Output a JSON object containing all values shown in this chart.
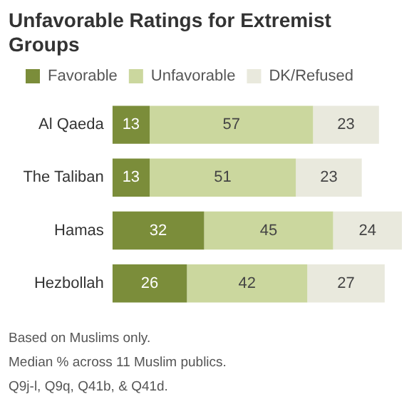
{
  "chart_data": {
    "type": "bar",
    "orientation": "horizontal",
    "stacked": true,
    "title": "Unfavorable Ratings for Extremist Groups",
    "categories": [
      "Al Qaeda",
      "The Taliban",
      "Hamas",
      "Hezbollah"
    ],
    "series": [
      {
        "name": "Favorable",
        "color": "#7b8d3a",
        "values": [
          13,
          13,
          32,
          26
        ]
      },
      {
        "name": "Unfavorable",
        "color": "#cbd79e",
        "values": [
          57,
          51,
          45,
          42
        ]
      },
      {
        "name": "DK/Refused",
        "color": "#e9e9dd",
        "values": [
          23,
          23,
          24,
          27
        ]
      }
    ],
    "data_labels": true,
    "legend": "top left",
    "grid": false,
    "tick_labels": "y",
    "annotations": [
      "Based on Muslims only.",
      "Median % across 11 Muslim publics.",
      "Q9j-l, Q9q, Q41b, & Q41d."
    ]
  }
}
